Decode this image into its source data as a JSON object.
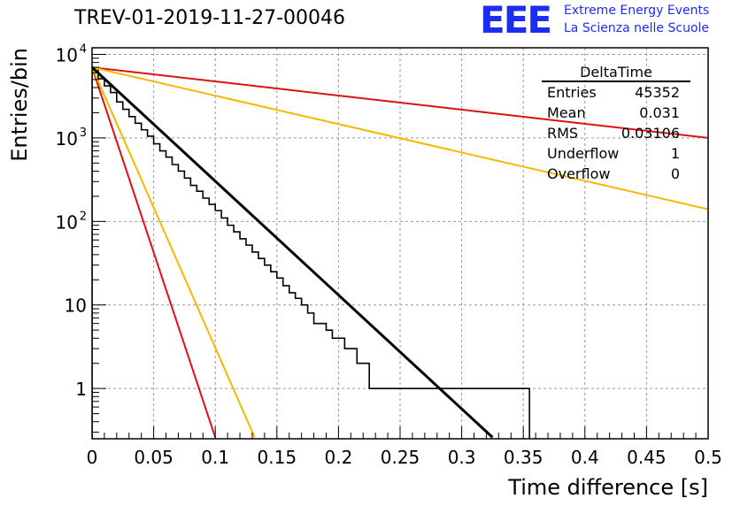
{
  "header": {
    "title": "TREV-01-2019-11-27-00046",
    "logo_text": "EEE",
    "logo_line1": "Extreme Energy Events",
    "logo_line2": "La Scienza nelle Scuole"
  },
  "stats": {
    "title": "DeltaTime",
    "rows": [
      {
        "label": "Entries",
        "value": "45352"
      },
      {
        "label": "Mean",
        "value": "0.031"
      },
      {
        "label": "RMS",
        "value": "0.03106"
      },
      {
        "label": "Underflow",
        "value": "1"
      },
      {
        "label": "Overflow",
        "value": "0"
      }
    ]
  },
  "chart_data": {
    "type": "line",
    "xlabel": "Time difference [s]",
    "ylabel": "Entries/bin",
    "xlim": [
      0,
      0.5
    ],
    "ylim": [
      0.25,
      12000
    ],
    "log_y": true,
    "grid": true,
    "x_ticks": [
      "0",
      "0.05",
      "0.1",
      "0.15",
      "0.2",
      "0.25",
      "0.3",
      "0.35",
      "0.4",
      "0.45",
      "0.5"
    ],
    "y_ticks": [
      {
        "value": 1,
        "base": "1",
        "exp": ""
      },
      {
        "value": 10,
        "base": "10",
        "exp": ""
      },
      {
        "value": 100,
        "base": "10",
        "exp": "2"
      },
      {
        "value": 1000,
        "base": "10",
        "exp": "3"
      },
      {
        "value": 10000,
        "base": "10",
        "exp": "4"
      }
    ],
    "histogram": {
      "bin_edges_start": 0,
      "bin_width": 0.005,
      "counts": [
        6900,
        5100,
        4200,
        3500,
        2700,
        2200,
        1800,
        1500,
        1250,
        1050,
        850,
        700,
        590,
        480,
        400,
        330,
        270,
        230,
        190,
        160,
        135,
        110,
        90,
        75,
        62,
        52,
        43,
        36,
        30,
        25,
        21,
        17,
        14,
        12,
        10,
        8,
        6,
        6,
        5,
        4,
        4,
        3,
        3,
        2,
        2,
        1,
        1,
        1,
        1,
        1,
        1,
        1,
        1,
        1,
        1,
        1,
        1,
        1,
        1,
        1,
        1,
        1,
        1,
        1,
        1,
        1,
        1,
        1,
        1,
        1,
        1
      ]
    },
    "fit_line": {
      "x0": 0,
      "y0": 7000,
      "x1": 0.325,
      "y1": 0.26,
      "color": "#000000"
    },
    "reference_lines": [
      {
        "x0": 0,
        "y0": 7000,
        "x1": 0.5,
        "y1": 1000,
        "color": "#e01010"
      },
      {
        "x0": 0,
        "y0": 7000,
        "x1": 0.5,
        "y1": 140,
        "color": "#f5b800"
      },
      {
        "x0": 0,
        "y0": 7000,
        "x1": 0.1,
        "y1": 0.26,
        "color": "#e01010"
      },
      {
        "x0": 0,
        "y0": 7000,
        "x1": 0.132,
        "y1": 0.26,
        "color": "#f5b800"
      }
    ]
  }
}
